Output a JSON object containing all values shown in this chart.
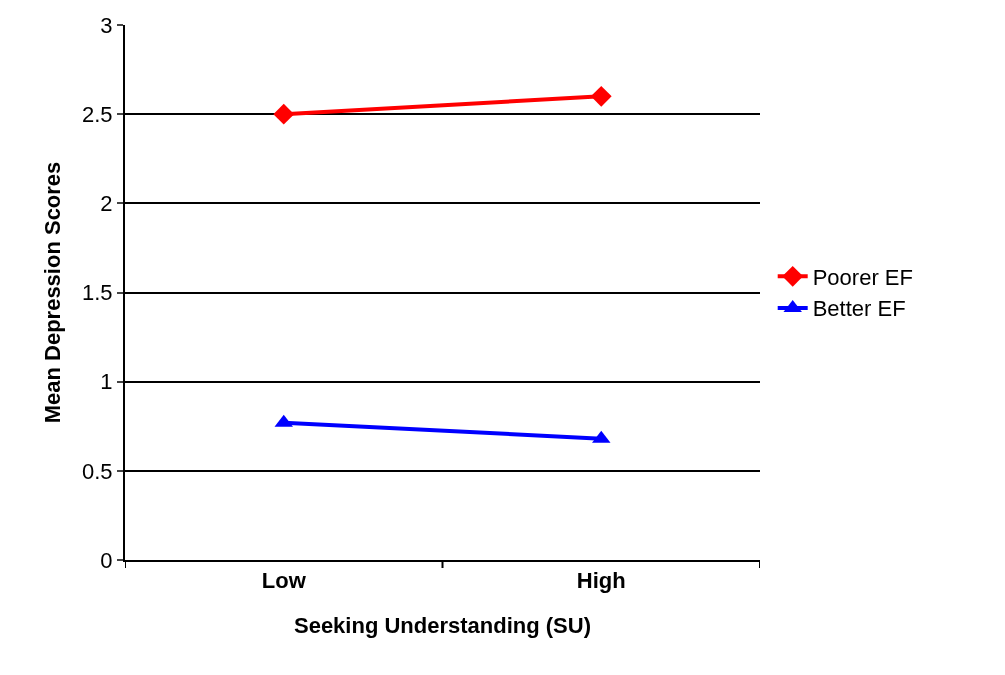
{
  "chart_data": {
    "type": "line",
    "xlabel": "Seeking Understanding (SU)",
    "ylabel": "Mean Depression Scores",
    "categories": [
      "Low",
      "High"
    ],
    "series": [
      {
        "name": "Poorer EF",
        "color": "#ff0000",
        "marker": "diamond",
        "values": [
          2.5,
          2.6
        ]
      },
      {
        "name": "Better EF",
        "color": "#0000ff",
        "marker": "triangle",
        "values": [
          0.77,
          0.68
        ]
      }
    ],
    "ylim": [
      0,
      3
    ],
    "yticks": [
      0,
      0.5,
      1,
      1.5,
      2,
      2.5,
      3
    ],
    "grid": "y",
    "legend": "right",
    "line_style": "solid"
  }
}
